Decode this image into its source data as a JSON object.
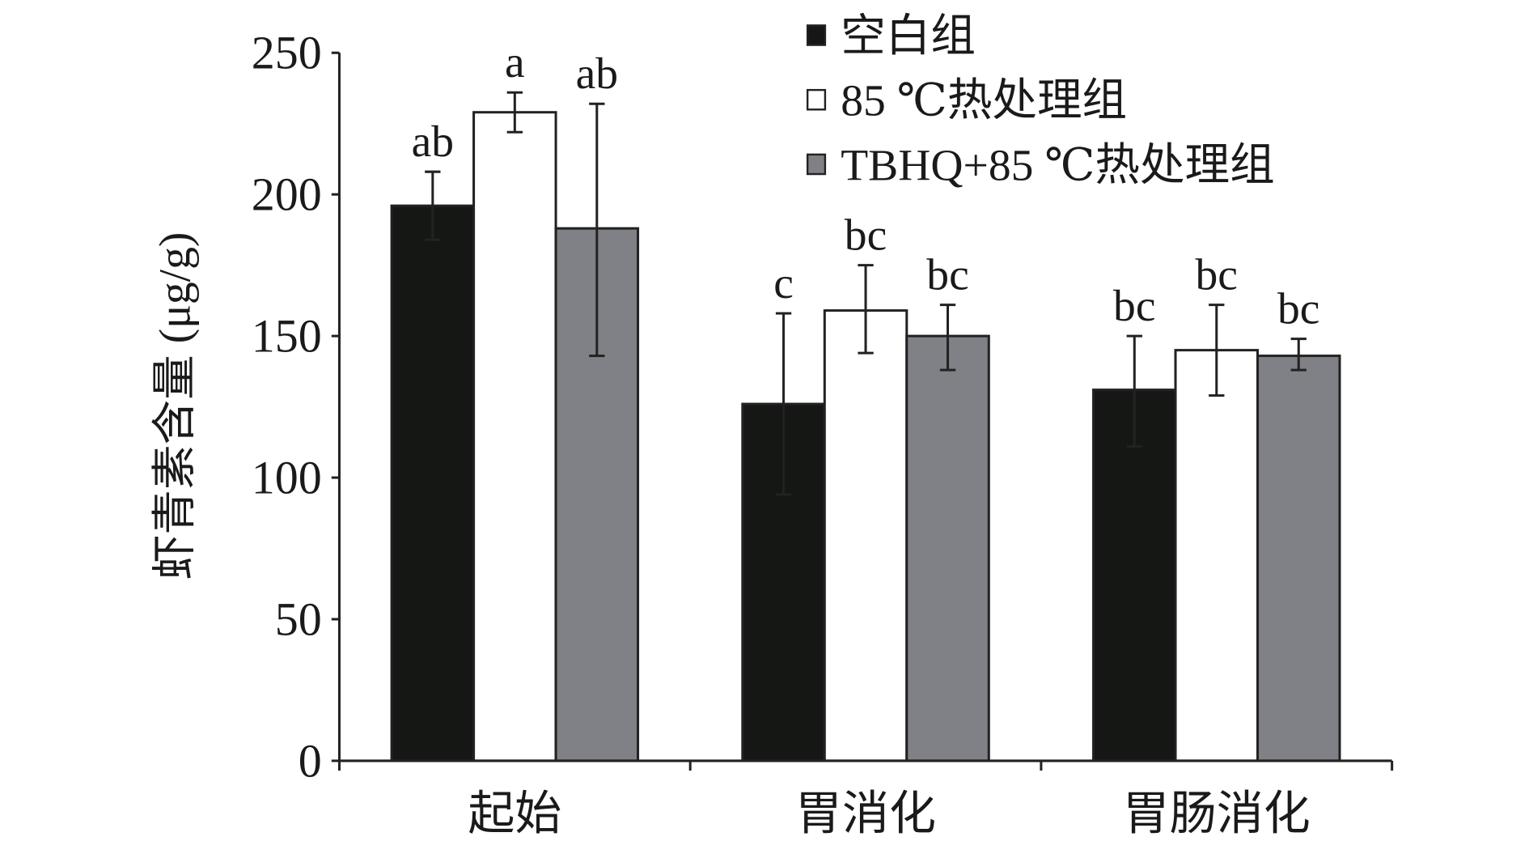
{
  "chart_data": {
    "type": "bar",
    "title": "",
    "xlabel": "",
    "ylabel": "虾青素含量 (μg/g)",
    "ylim": [
      0,
      250
    ],
    "yticks": [
      "0",
      "50",
      "100",
      "150",
      "200",
      "250"
    ],
    "ytick_values": [
      0,
      50,
      100,
      150,
      200,
      250
    ],
    "grid": false,
    "legend_position": "top-right",
    "categories": [
      "起始",
      "胃消化",
      "胃肠消化"
    ],
    "series": [
      {
        "name": "空白组",
        "color": "#151715",
        "values": [
          196,
          126,
          131
        ],
        "err_low": [
          184,
          94,
          111
        ],
        "err_high": [
          208,
          158,
          150
        ],
        "labels": [
          "ab",
          "c",
          "bc"
        ]
      },
      {
        "name": "85 ℃热处理组",
        "color": "#ffffff",
        "values": [
          229,
          159,
          145
        ],
        "err_low": [
          222,
          144,
          129
        ],
        "err_high": [
          236,
          175,
          161
        ],
        "labels": [
          "a",
          "bc",
          "bc"
        ]
      },
      {
        "name": "TBHQ+85 ℃热处理组",
        "color": "#808186",
        "values": [
          188,
          150,
          143
        ],
        "err_low": [
          143,
          138,
          138
        ],
        "err_high": [
          232,
          161,
          149
        ],
        "labels": [
          "ab",
          "bc",
          "bc"
        ]
      }
    ]
  }
}
